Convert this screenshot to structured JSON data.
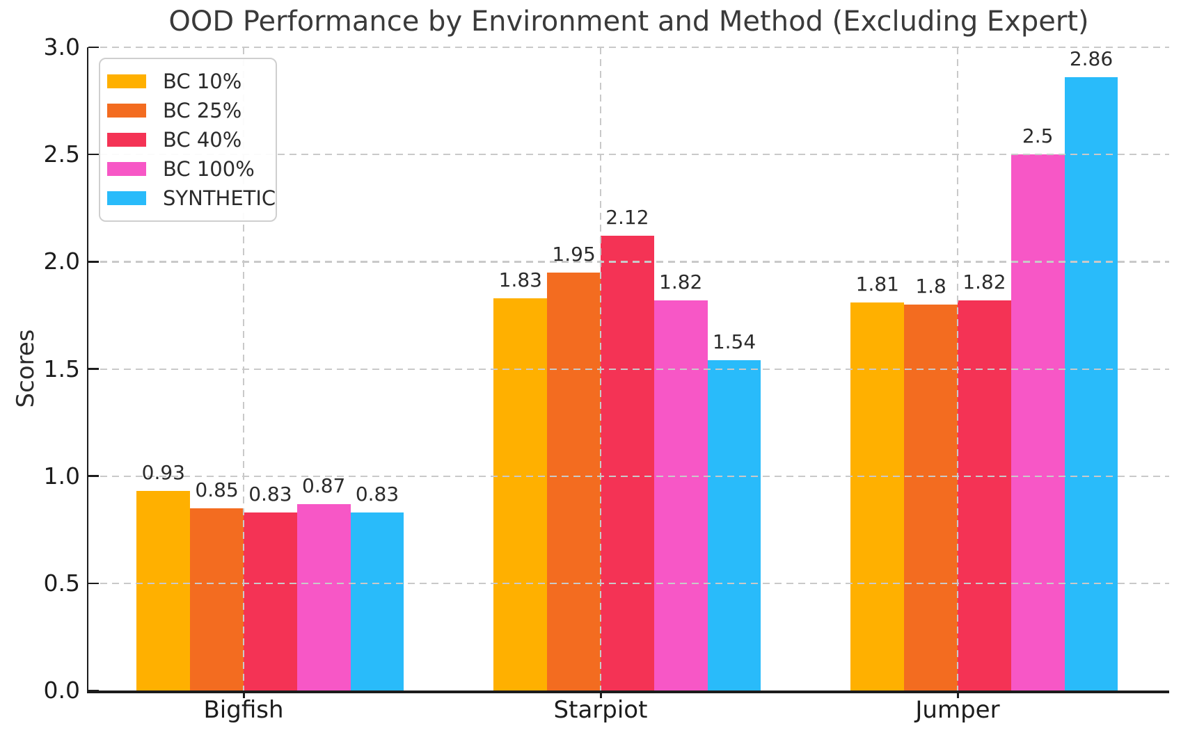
{
  "chart_data": {
    "type": "bar",
    "title": "OOD Performance by Environment and Method (Excluding Expert)",
    "xlabel": "",
    "ylabel": "Scores",
    "ylim": [
      0,
      3.0
    ],
    "yticks": [
      "0.0",
      "0.5",
      "1.0",
      "1.5",
      "2.0",
      "2.5",
      "3.0"
    ],
    "categories": [
      "Bigfish",
      "Starpiot",
      "Jumper"
    ],
    "series": [
      {
        "name": "BC 10%",
        "color": "#FFB000",
        "values": [
          0.93,
          1.83,
          1.81
        ]
      },
      {
        "name": "BC 25%",
        "color": "#F36C20",
        "values": [
          0.85,
          1.95,
          1.8
        ]
      },
      {
        "name": "BC 40%",
        "color": "#F43355",
        "values": [
          0.83,
          2.12,
          1.82
        ]
      },
      {
        "name": "BC 100%",
        "color": "#F757C6",
        "values": [
          0.87,
          1.82,
          2.5
        ]
      },
      {
        "name": "SYNTHETIC",
        "color": "#29BBFA",
        "values": [
          0.83,
          1.54,
          2.86
        ]
      }
    ],
    "legend_position": "upper left",
    "grid": true,
    "grid_style": "dashed",
    "grid_color": "#c9c9c9",
    "bar_value_labels": true
  }
}
